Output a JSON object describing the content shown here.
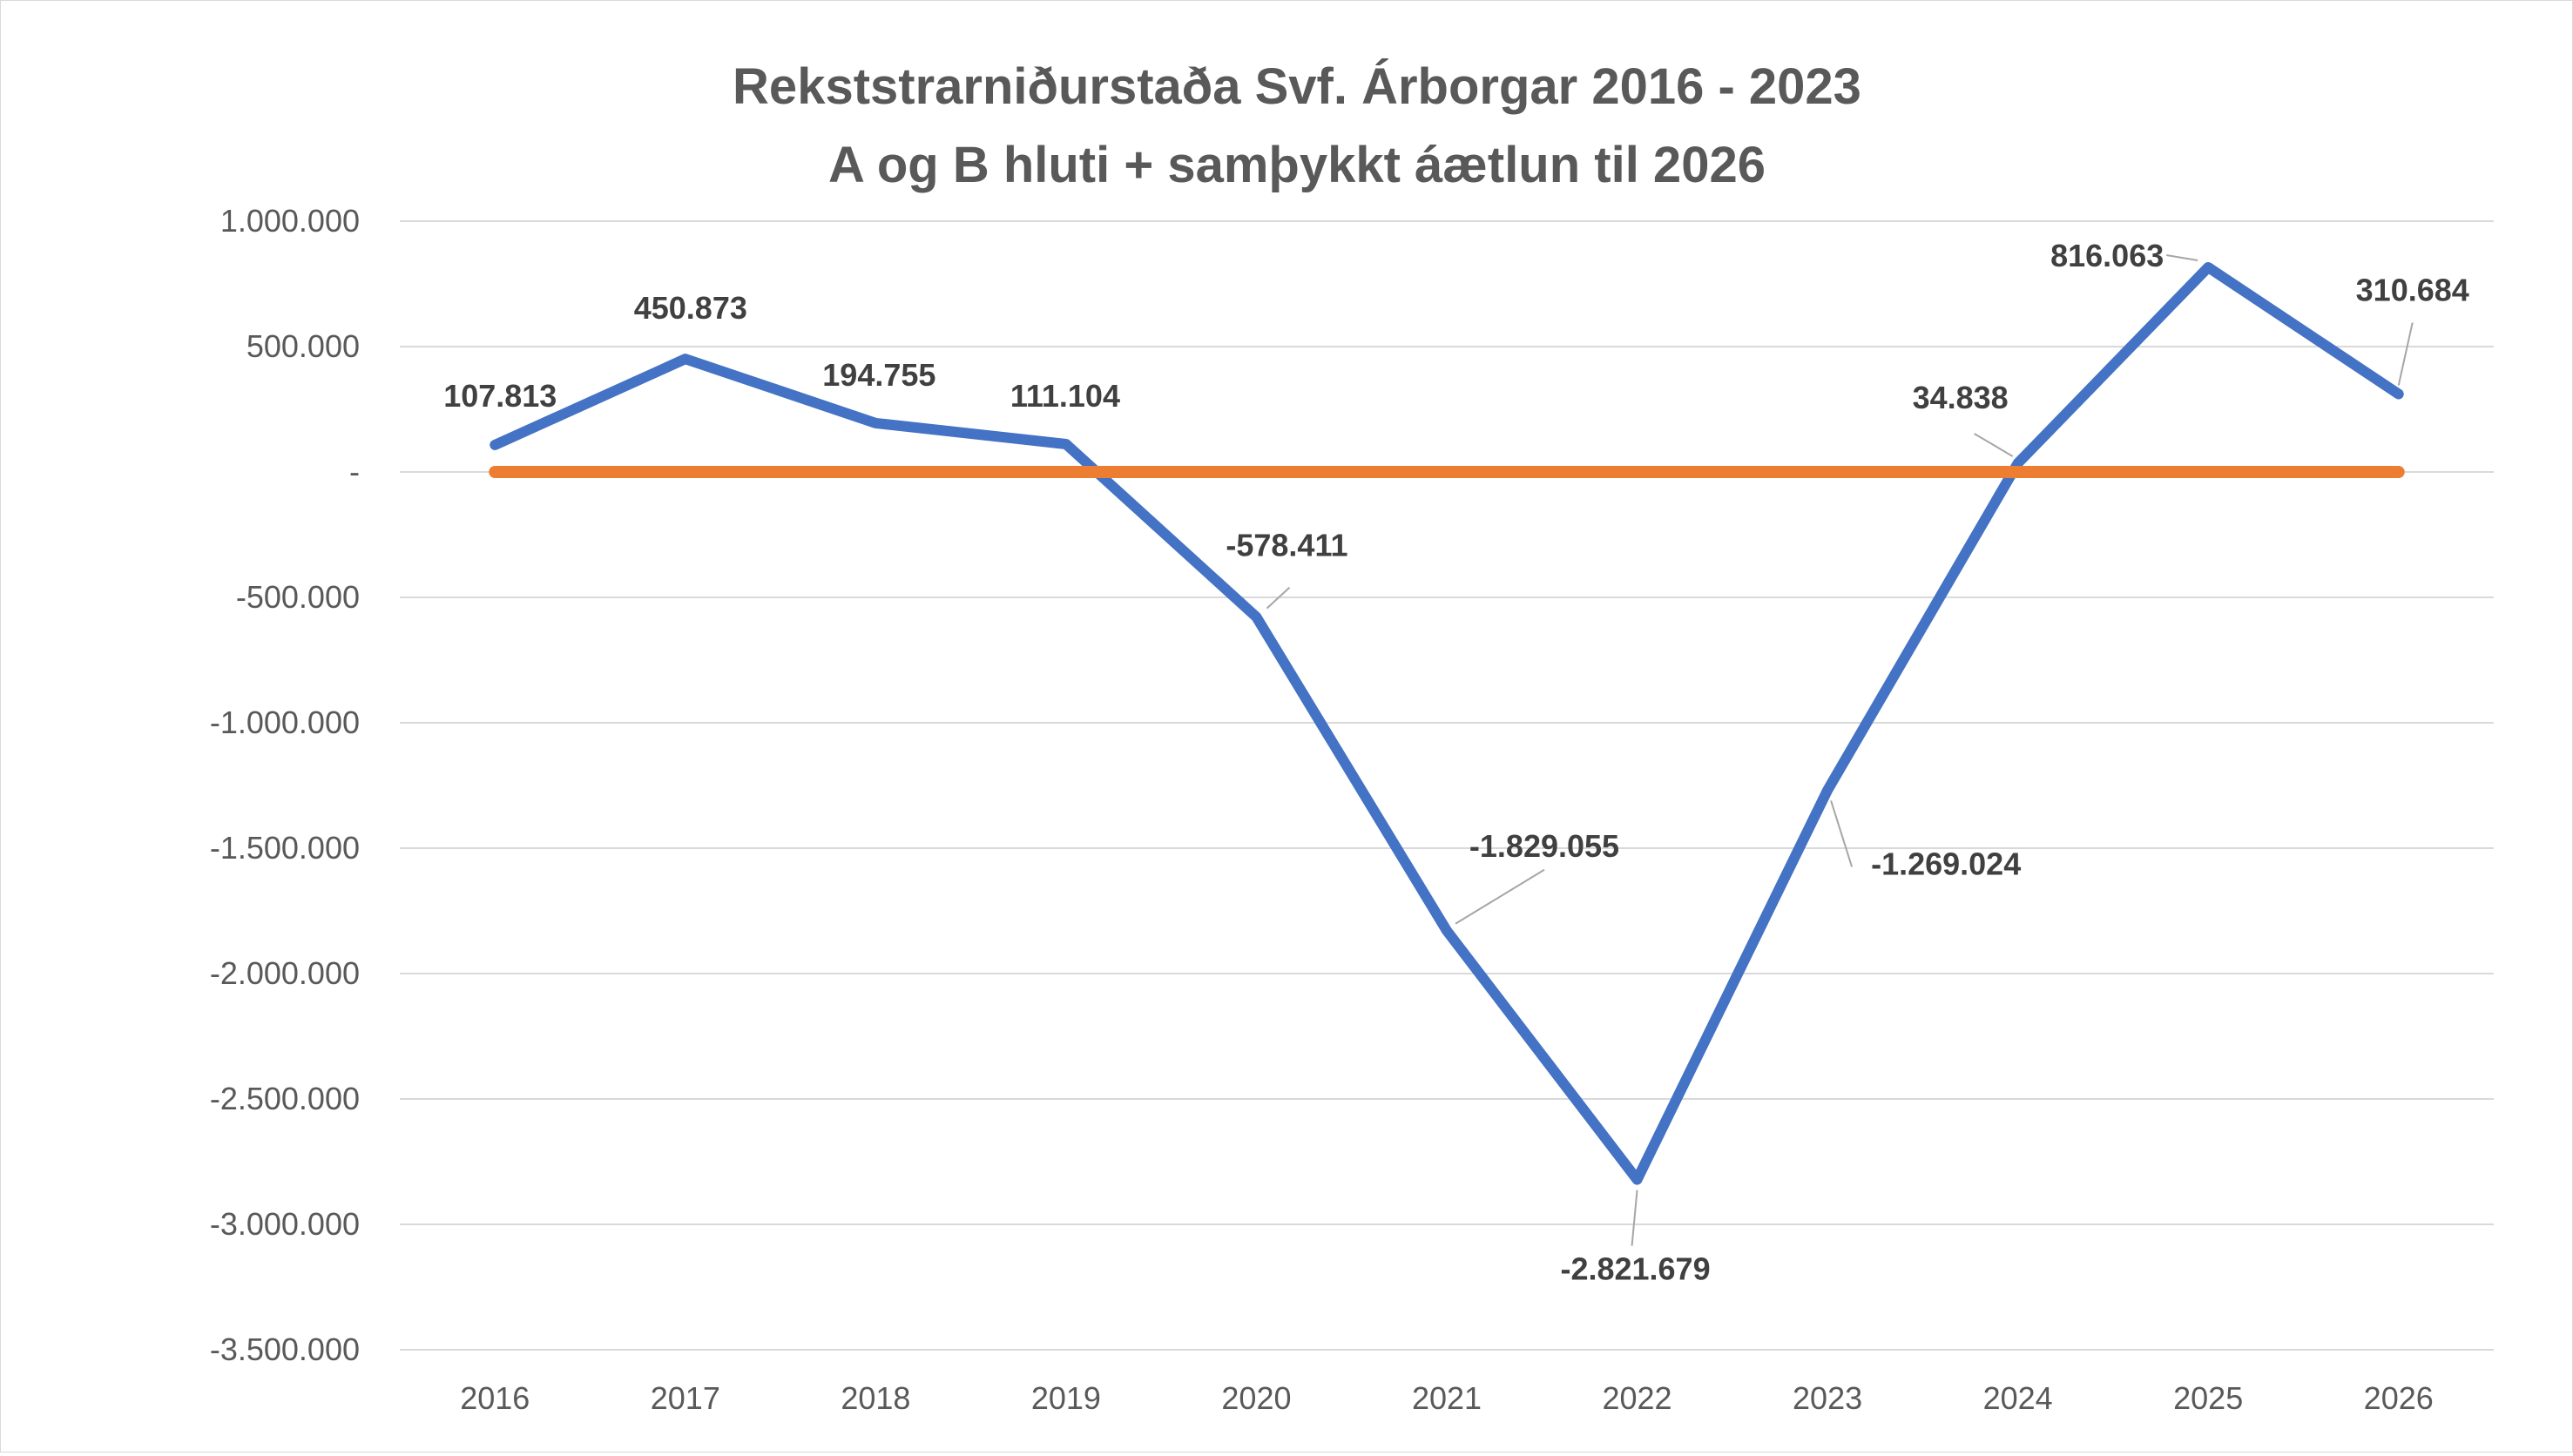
{
  "chart_data": {
    "type": "line",
    "title_line1": "Rekststrarniðurstaða Svf. Árborgar 2016 - 2023",
    "title_line2": "A og B hluti + samþykkt áætlun til 2026",
    "categories": [
      "2016",
      "2017",
      "2018",
      "2019",
      "2020",
      "2021",
      "2022",
      "2023",
      "2024",
      "2025",
      "2026"
    ],
    "series": [
      {
        "color": "#4472c4",
        "values": [
          107813,
          450873,
          194755,
          111104,
          -578411,
          -1829055,
          -2821679,
          -1269024,
          34838,
          816063,
          310684
        ],
        "labels": [
          "107.813",
          "450.873",
          "194.755",
          "111.104",
          "-578.411",
          "-1.829.055",
          "-2.821.679",
          "-1.269.024",
          "34.838",
          "816.063",
          "310.684"
        ]
      },
      {
        "color": "#ed7d31",
        "values": [
          0,
          0,
          0,
          0,
          0,
          0,
          0,
          0,
          0,
          0,
          0
        ]
      }
    ],
    "y_ticks": [
      1000000,
      500000,
      0,
      -500000,
      -1000000,
      -1500000,
      -2000000,
      -2500000,
      -3000000,
      -3500000
    ],
    "y_tick_labels": [
      "1.000.000",
      "500.000",
      "-",
      "-500.000",
      "-1.000.000",
      "-1.500.000",
      "-2.000.000",
      "-2.500.000",
      "-3.000.000",
      "-3.500.000"
    ],
    "ylim": [
      -3500000,
      1000000
    ],
    "grid": true,
    "legend": "none"
  }
}
